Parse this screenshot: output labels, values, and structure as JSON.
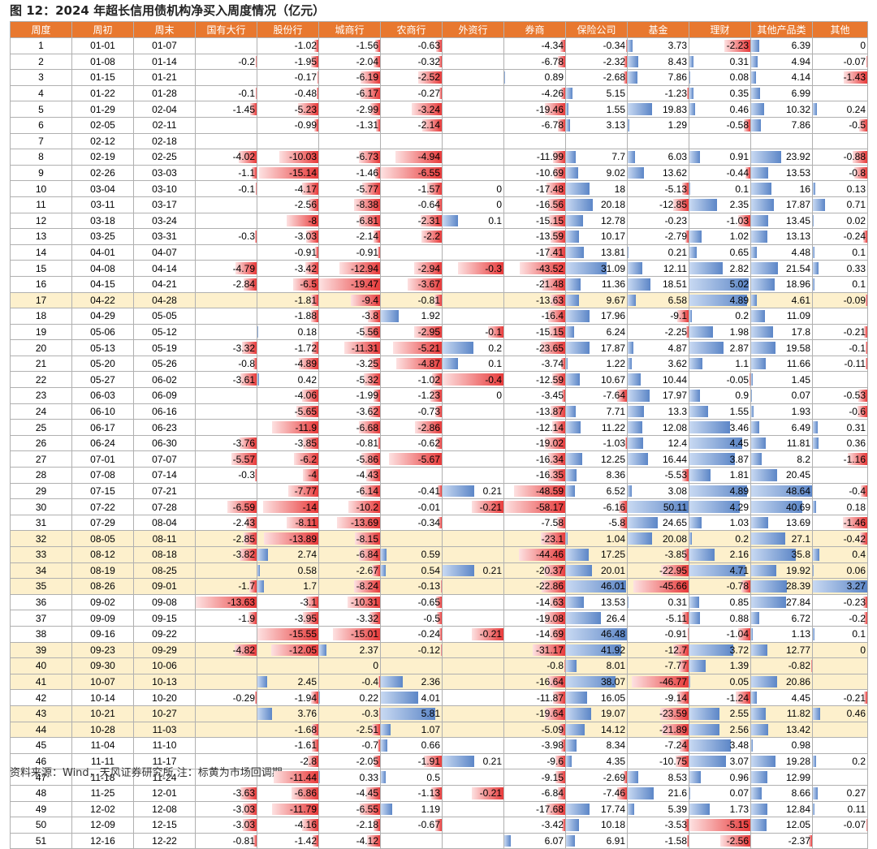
{
  "title": "图 12：2024 年超长信用债机构净买入周度情况（亿元）",
  "footer": "资料来源：Wind，天风证券研究所    注：标黄为市场回调期",
  "colors": {
    "header_bg": "#e8782f",
    "highlight_bg": "#fdf0cc",
    "negative_bar": "#e83a3a",
    "positive_bar": "#5c86c7"
  },
  "columns": [
    "周度",
    "周初",
    "周末",
    "国有大行",
    "股份行",
    "城商行",
    "农商行",
    "外资行",
    "券商",
    "保险公司",
    "基金",
    "理财",
    "其他产品类",
    "其他"
  ],
  "highlight_weeks": [
    17,
    32,
    33,
    34,
    35,
    39,
    40,
    41,
    43,
    44
  ],
  "rows": [
    [
      "1",
      "01-01",
      "01-07",
      "",
      "-1.02",
      "-1.56",
      "-0.63",
      "",
      "-4.34",
      "-0.34",
      "3.73",
      "-2.23",
      "6.39",
      "0"
    ],
    [
      "2",
      "01-08",
      "01-14",
      "-0.2",
      "-1.95",
      "-2.04",
      "-0.32",
      "",
      "-6.78",
      "-2.32",
      "8.43",
      "0.31",
      "4.94",
      "-0.07"
    ],
    [
      "3",
      "01-15",
      "01-21",
      "",
      "-0.17",
      "-6.19",
      "-2.52",
      "",
      "0.89",
      "-2.68",
      "7.86",
      "0.08",
      "4.14",
      "-1.43"
    ],
    [
      "4",
      "01-22",
      "01-28",
      "-0.1",
      "-0.48",
      "-6.17",
      "-0.27",
      "",
      "-4.26",
      "5.15",
      "-1.23",
      "0.35",
      "6.99",
      ""
    ],
    [
      "5",
      "01-29",
      "02-04",
      "-1.45",
      "-5.23",
      "-2.99",
      "-3.24",
      "",
      "-19.46",
      "1.55",
      "19.83",
      "0.46",
      "10.32",
      "0.24"
    ],
    [
      "6",
      "02-05",
      "02-11",
      "",
      "-0.99",
      "-1.31",
      "-2.14",
      "",
      "-6.78",
      "3.13",
      "1.29",
      "-0.58",
      "7.86",
      "-0.5"
    ],
    [
      "7",
      "02-12",
      "02-18",
      "",
      "",
      "",
      "",
      "",
      "",
      "",
      "",
      "",
      "",
      ""
    ],
    [
      "8",
      "02-19",
      "02-25",
      "-4.02",
      "-10.03",
      "-6.73",
      "-4.94",
      "",
      "-11.99",
      "7.7",
      "6.03",
      "0.91",
      "23.92",
      "-0.88"
    ],
    [
      "9",
      "02-26",
      "03-03",
      "-1.1",
      "-15.14",
      "-1.46",
      "-6.55",
      "",
      "-10.69",
      "9.02",
      "13.62",
      "-0.44",
      "13.53",
      "-0.8"
    ],
    [
      "10",
      "03-04",
      "03-10",
      "-0.1",
      "-4.17",
      "-5.77",
      "-1.57",
      "0",
      "-17.48",
      "18",
      "-5.13",
      "0.1",
      "16",
      "0.13"
    ],
    [
      "11",
      "03-11",
      "03-17",
      "",
      "-2.56",
      "-8.38",
      "-0.64",
      "0",
      "-16.56",
      "20.18",
      "-12.85",
      "2.35",
      "17.87",
      "0.71"
    ],
    [
      "12",
      "03-18",
      "03-24",
      "",
      "-8",
      "-6.81",
      "-2.31",
      "0.1",
      "-15.15",
      "12.78",
      "-0.23",
      "-1.03",
      "13.45",
      "0.02"
    ],
    [
      "13",
      "03-25",
      "03-31",
      "-0.3",
      "-3.03",
      "-2.14",
      "-2.2",
      "",
      "-13.59",
      "10.17",
      "-2.79",
      "1.02",
      "13.13",
      "-0.24"
    ],
    [
      "14",
      "04-01",
      "04-07",
      "",
      "-0.91",
      "-0.91",
      "",
      "",
      "-17.41",
      "13.81",
      "0.21",
      "0.65",
      "4.48",
      "0.1"
    ],
    [
      "15",
      "04-08",
      "04-14",
      "-4.79",
      "-3.42",
      "-12.94",
      "-2.94",
      "-0.3",
      "-43.52",
      "31.09",
      "12.11",
      "2.82",
      "21.54",
      "0.33"
    ],
    [
      "16",
      "04-15",
      "04-21",
      "-2.84",
      "-6.5",
      "-19.47",
      "-3.67",
      "",
      "-21.48",
      "11.36",
      "18.51",
      "5.02",
      "18.96",
      "0.1"
    ],
    [
      "17",
      "04-22",
      "04-28",
      "",
      "-1.81",
      "-9.4",
      "-0.81",
      "",
      "-13.63",
      "9.67",
      "6.58",
      "4.89",
      "4.61",
      "-0.09"
    ],
    [
      "18",
      "04-29",
      "05-05",
      "",
      "-1.88",
      "-3.8",
      "1.92",
      "",
      "-16.4",
      "17.96",
      "-9.1",
      "0.2",
      "11.09",
      ""
    ],
    [
      "19",
      "05-06",
      "05-12",
      "",
      "0.18",
      "-5.56",
      "-2.95",
      "-0.1",
      "-15.15",
      "6.24",
      "-2.25",
      "1.98",
      "17.8",
      "-0.21"
    ],
    [
      "20",
      "05-13",
      "05-19",
      "-3.32",
      "-1.72",
      "-11.31",
      "-5.21",
      "0.2",
      "-23.65",
      "17.87",
      "4.87",
      "2.87",
      "19.58",
      "-0.1"
    ],
    [
      "21",
      "05-20",
      "05-26",
      "-0.8",
      "-4.89",
      "-3.25",
      "-4.87",
      "0.1",
      "-3.74",
      "1.22",
      "3.62",
      "1.1",
      "11.66",
      "-0.11"
    ],
    [
      "22",
      "05-27",
      "06-02",
      "-3.61",
      "0.42",
      "-5.32",
      "-1.02",
      "-0.4",
      "-12.59",
      "10.67",
      "10.44",
      "-0.05",
      "1.45",
      ""
    ],
    [
      "23",
      "06-03",
      "06-09",
      "",
      "-4.06",
      "-1.99",
      "-1.23",
      "0",
      "-3.45",
      "-7.64",
      "17.97",
      "0.9",
      "0.07",
      "-0.53"
    ],
    [
      "24",
      "06-10",
      "06-16",
      "",
      "-5.65",
      "-3.62",
      "-0.73",
      "",
      "-13.87",
      "7.71",
      "13.3",
      "1.55",
      "1.93",
      "-0.6"
    ],
    [
      "25",
      "06-17",
      "06-23",
      "",
      "-11.9",
      "-6.68",
      "-2.86",
      "",
      "-12.14",
      "11.22",
      "12.08",
      "3.46",
      "6.49",
      "0.31"
    ],
    [
      "26",
      "06-24",
      "06-30",
      "-3.76",
      "-3.85",
      "-0.81",
      "-0.62",
      "",
      "-19.02",
      "-1.03",
      "12.4",
      "4.45",
      "11.81",
      "0.36"
    ],
    [
      "27",
      "07-01",
      "07-07",
      "-5.57",
      "-6.2",
      "-5.86",
      "-5.67",
      "",
      "-16.34",
      "12.25",
      "16.44",
      "3.87",
      "8.2",
      "-1.16"
    ],
    [
      "28",
      "07-08",
      "07-14",
      "-0.3",
      "-4",
      "-4.43",
      "",
      "",
      "-16.35",
      "8.36",
      "-5.53",
      "1.81",
      "20.45",
      ""
    ],
    [
      "29",
      "07-15",
      "07-21",
      "",
      "-7.77",
      "-6.14",
      "-0.41",
      "0.21",
      "-48.59",
      "6.52",
      "3.08",
      "4.89",
      "48.64",
      "-0.4"
    ],
    [
      "30",
      "07-22",
      "07-28",
      "-6.59",
      "-14",
      "-10.2",
      "-0.01",
      "-0.21",
      "-58.17",
      "-6.16",
      "50.11",
      "4.29",
      "40.69",
      "0.18"
    ],
    [
      "31",
      "07-29",
      "08-04",
      "-2.43",
      "-8.11",
      "-13.69",
      "-0.34",
      "",
      "-7.58",
      "-5.8",
      "24.65",
      "1.03",
      "13.69",
      "-1.46"
    ],
    [
      "32",
      "08-05",
      "08-11",
      "-2.85",
      "-13.89",
      "-8.15",
      "",
      "",
      "-23.1",
      "1.04",
      "20.08",
      "0.2",
      "27.1",
      "-0.42"
    ],
    [
      "33",
      "08-12",
      "08-18",
      "-3.82",
      "2.74",
      "-6.84",
      "0.59",
      "",
      "-44.46",
      "17.25",
      "-3.85",
      "2.16",
      "35.8",
      "0.4"
    ],
    [
      "34",
      "08-19",
      "08-25",
      "",
      "0.58",
      "-2.67",
      "0.54",
      "0.21",
      "-20.37",
      "20.01",
      "-22.95",
      "4.71",
      "19.92",
      "0.06"
    ],
    [
      "35",
      "08-26",
      "09-01",
      "-1.7",
      "1.7",
      "-8.24",
      "-0.13",
      "",
      "-22.86",
      "46.01",
      "-45.66",
      "-0.78",
      "28.39",
      "3.27"
    ],
    [
      "36",
      "09-02",
      "09-08",
      "-13.63",
      "-3.1",
      "-10.31",
      "-0.65",
      "",
      "-14.63",
      "13.53",
      "0.31",
      "0.85",
      "27.84",
      "-0.23"
    ],
    [
      "37",
      "09-09",
      "09-15",
      "-1.9",
      "-3.95",
      "-3.32",
      "-0.5",
      "",
      "-19.08",
      "26.4",
      "-5.11",
      "0.88",
      "6.72",
      "-0.2"
    ],
    [
      "38",
      "09-16",
      "09-22",
      "",
      "-15.55",
      "-15.01",
      "-0.24",
      "-0.21",
      "-14.69",
      "46.48",
      "-0.91",
      "-1.04",
      "1.13",
      "0.1"
    ],
    [
      "39",
      "09-23",
      "09-29",
      "-4.82",
      "-12.05",
      "2.37",
      "-0.12",
      "",
      "-31.17",
      "41.92",
      "-12.7",
      "3.72",
      "12.77",
      "0"
    ],
    [
      "40",
      "09-30",
      "10-06",
      "",
      "",
      "0",
      "",
      "",
      "-0.8",
      "8.01",
      "-7.77",
      "1.39",
      "-0.82",
      ""
    ],
    [
      "41",
      "10-07",
      "10-13",
      "",
      "2.45",
      "-0.4",
      "2.36",
      "",
      "-16.64",
      "38.07",
      "-46.77",
      "0.05",
      "20.86",
      ""
    ],
    [
      "42",
      "10-14",
      "10-20",
      "-0.29",
      "-1.94",
      "0.22",
      "4.01",
      "",
      "-11.87",
      "16.05",
      "-9.14",
      "-1.24",
      "4.45",
      "-0.21"
    ],
    [
      "43",
      "10-21",
      "10-27",
      "",
      "3.76",
      "-0.3",
      "5.81",
      "",
      "-19.64",
      "19.07",
      "-23.59",
      "2.55",
      "11.82",
      "0.46"
    ],
    [
      "44",
      "10-28",
      "11-03",
      "",
      "-1.68",
      "-2.51",
      "1.07",
      "",
      "-5.09",
      "14.12",
      "-21.89",
      "2.56",
      "13.42",
      ""
    ],
    [
      "45",
      "11-04",
      "11-10",
      "",
      "-1.61",
      "-0.7",
      "0.66",
      "",
      "-3.98",
      "8.34",
      "-7.24",
      "3.48",
      "0.98",
      ""
    ],
    [
      "46",
      "11-11",
      "11-17",
      "",
      "-2.8",
      "-2.05",
      "-1.91",
      "0.21",
      "-9.6",
      "4.35",
      "-10.75",
      "3.07",
      "19.28",
      "0.2"
    ],
    [
      "47",
      "11-18",
      "11-24",
      "",
      "-11.44",
      "0.33",
      "0.5",
      "",
      "-9.15",
      "-2.69",
      "8.53",
      "0.96",
      "12.99",
      ""
    ],
    [
      "48",
      "11-25",
      "12-01",
      "-3.63",
      "-6.86",
      "-4.45",
      "-1.13",
      "-0.21",
      "-6.84",
      "-7.46",
      "21.6",
      "0.07",
      "8.66",
      "0.27"
    ],
    [
      "49",
      "12-02",
      "12-08",
      "-3.03",
      "-11.79",
      "-6.55",
      "1.19",
      "",
      "-17.68",
      "17.74",
      "5.39",
      "1.73",
      "12.84",
      "0.11"
    ],
    [
      "50",
      "12-09",
      "12-15",
      "-3.03",
      "-4.16",
      "-2.18",
      "-0.67",
      "",
      "-3.42",
      "10.18",
      "-3.53",
      "-5.15",
      "12.05",
      "-0.07"
    ],
    [
      "51",
      "12-16",
      "12-22",
      "-0.81",
      "-1.42",
      "-4.12",
      "",
      "",
      "6.07",
      "6.91",
      "-1.58",
      "-2.56",
      "-2.37",
      ""
    ]
  ]
}
